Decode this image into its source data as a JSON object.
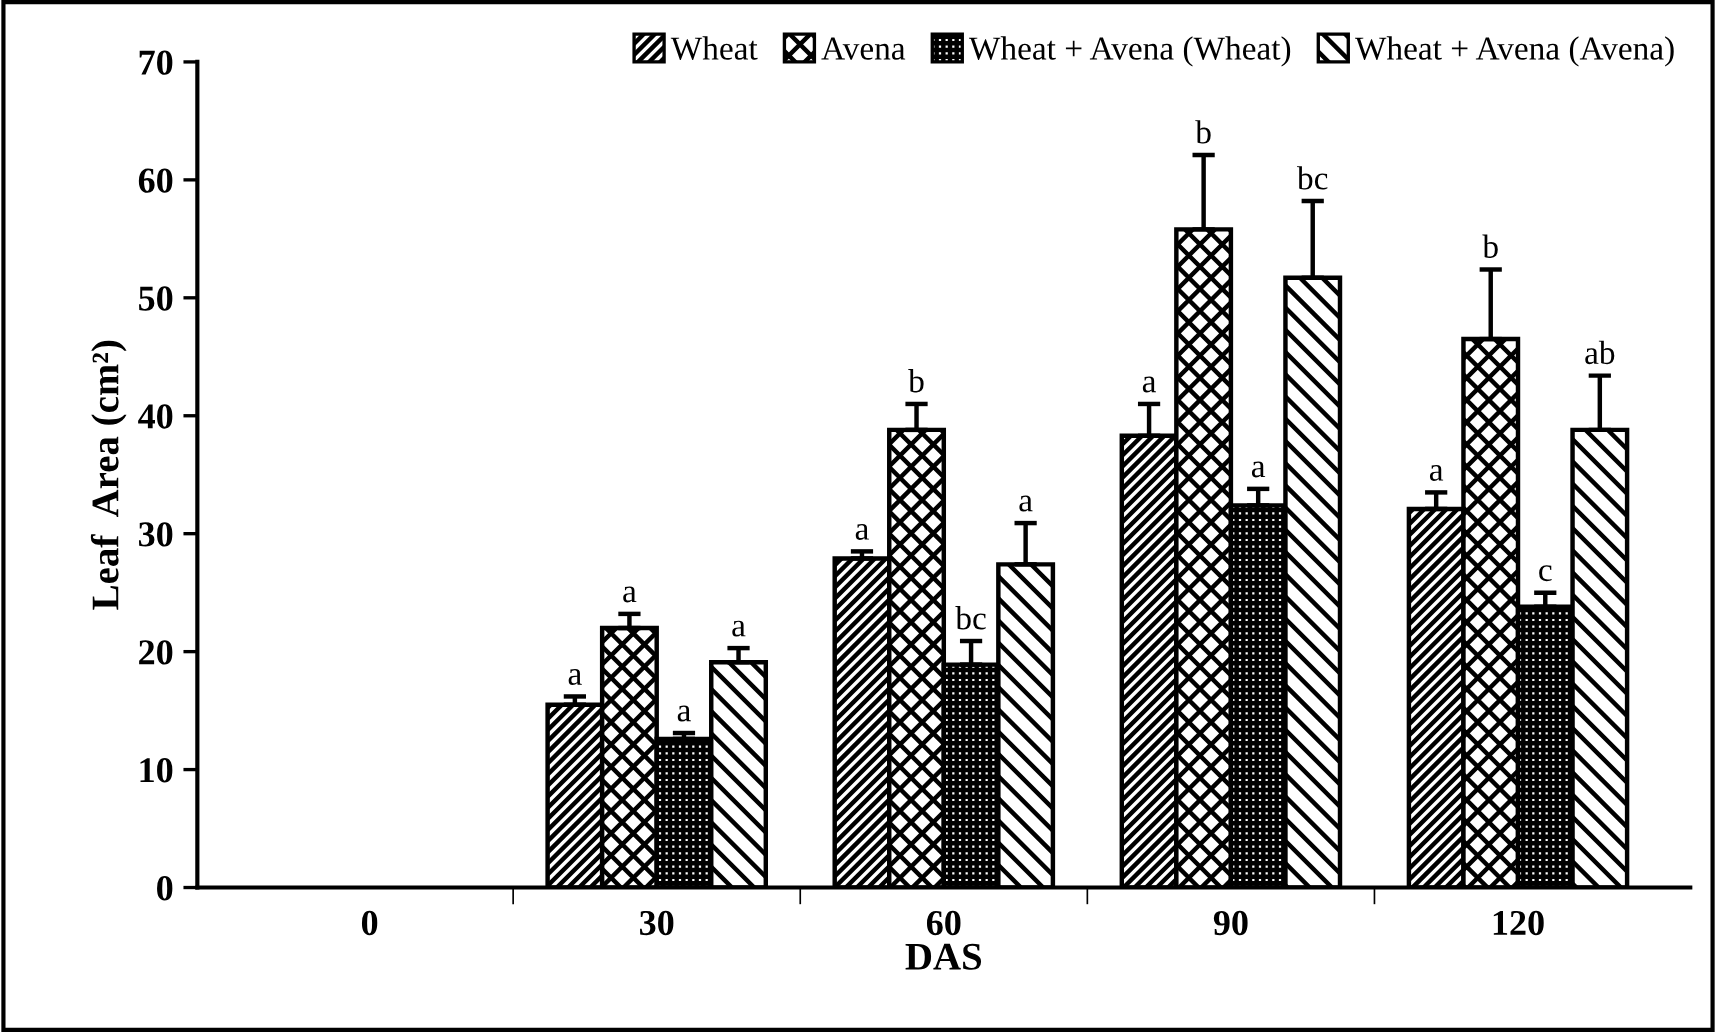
{
  "chart_data": {
    "type": "bar",
    "xlabel": "DAS",
    "ylabel": "Leaf  Area (cm²)",
    "categories": [
      "0",
      "30",
      "60",
      "90",
      "120"
    ],
    "series": [
      {
        "name": "Wheat",
        "color": "#000000",
        "values": [
          null,
          15.5,
          27.9,
          38.3,
          32.1
        ],
        "errors": [
          null,
          [
            15.5,
            16.2
          ],
          [
            27.9,
            28.5
          ],
          [
            38.3,
            41.0
          ],
          [
            32.1,
            33.5
          ]
        ],
        "value_labels": [
          null,
          "a",
          "a",
          "a",
          "a"
        ]
      },
      {
        "name": "Avena",
        "color": "#000000",
        "values": [
          null,
          22.0,
          38.8,
          55.8,
          46.5
        ],
        "errors": [
          null,
          [
            22.0,
            23.2
          ],
          [
            38.8,
            41.0
          ],
          [
            55.8,
            62.1
          ],
          [
            46.5,
            52.4
          ]
        ],
        "value_labels": [
          null,
          "a",
          "b",
          "b",
          "b"
        ]
      },
      {
        "name": "Wheat + Avena (Wheat)",
        "color": "#000000",
        "values": [
          null,
          12.6,
          18.9,
          32.4,
          23.8
        ],
        "errors": [
          null,
          [
            12.6,
            13.1
          ],
          [
            18.9,
            20.9
          ],
          [
            32.4,
            33.8
          ],
          [
            23.8,
            25.0
          ]
        ],
        "value_labels": [
          null,
          "a",
          "bc",
          "a",
          "c"
        ]
      },
      {
        "name": "Wheat + Avena (Avena)",
        "color": "#000000",
        "values": [
          null,
          19.1,
          27.4,
          51.7,
          38.8
        ],
        "errors": [
          null,
          [
            19.1,
            20.3
          ],
          [
            27.4,
            30.9
          ],
          [
            51.7,
            58.2
          ],
          [
            38.8,
            43.4
          ]
        ],
        "value_labels": [
          null,
          "a",
          "a",
          "bc",
          "ab"
        ]
      }
    ],
    "ylim": [
      0,
      70
    ],
    "yticks": [
      0,
      10,
      20,
      30,
      40,
      50,
      60,
      70
    ],
    "grid": false,
    "legend": "top right"
  }
}
